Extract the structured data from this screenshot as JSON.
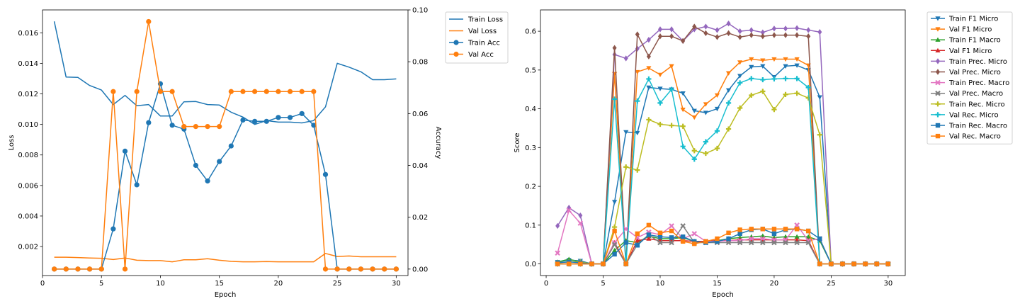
{
  "chart_data": [
    {
      "type": "line",
      "xlabel": "Epoch",
      "ylabel": "Loss",
      "y2label": "Accuracy",
      "xlim": [
        0,
        31
      ],
      "ylim": [
        0.0001,
        0.0175
      ],
      "y2lim": [
        -0.0025,
        0.1
      ],
      "xticks": [
        "0",
        "5",
        "10",
        "15",
        "20",
        "25",
        "30"
      ],
      "yticks": [
        "0.002",
        "0.004",
        "0.006",
        "0.008",
        "0.010",
        "0.012",
        "0.014",
        "0.016"
      ],
      "y2ticks": [
        "0.00",
        "0.02",
        "0.04",
        "0.06",
        "0.08",
        "0.10"
      ],
      "legend": "outside-right",
      "grid": false,
      "x": [
        1,
        2,
        3,
        4,
        5,
        6,
        7,
        8,
        9,
        10,
        11,
        12,
        13,
        14,
        15,
        16,
        17,
        18,
        19,
        20,
        21,
        22,
        23,
        24,
        25,
        26,
        27,
        28,
        29,
        30
      ],
      "series": [
        {
          "name": "Train Loss",
          "axis": "left",
          "color": "#1f77b4",
          "marker": "none",
          "values": [
            0.01675,
            0.0131,
            0.01308,
            0.01255,
            0.01225,
            0.0113,
            0.0119,
            0.01122,
            0.0113,
            0.01055,
            0.01055,
            0.01148,
            0.0115,
            0.0113,
            0.01127,
            0.0108,
            0.01048,
            0.01,
            0.01025,
            0.01015,
            0.01015,
            0.0101,
            0.01025,
            0.01115,
            0.014,
            0.01375,
            0.01345,
            0.01293,
            0.01293,
            0.01298
          ]
        },
        {
          "name": "Val Loss",
          "axis": "left",
          "color": "#ff7f0e",
          "marker": "none",
          "values": [
            0.0013,
            0.0013,
            0.00128,
            0.00125,
            0.00123,
            0.00115,
            0.00125,
            0.0011,
            0.00108,
            0.00108,
            0.001,
            0.00113,
            0.00113,
            0.0012,
            0.0011,
            0.00103,
            0.001,
            0.001,
            0.00102,
            0.001,
            0.001,
            0.001,
            0.001,
            0.00155,
            0.00135,
            0.00138,
            0.00133,
            0.00133,
            0.00133,
            0.00133
          ]
        },
        {
          "name": "Train Acc",
          "axis": "right",
          "color": "#1f77b4",
          "marker": "circle",
          "values": [
            0,
            0,
            0,
            0,
            0,
            0.0155,
            0.0455,
            0.0325,
            0.0565,
            0.0715,
            0.0555,
            0.054,
            0.04,
            0.034,
            0.0415,
            0.0475,
            0.0575,
            0.057,
            0.057,
            0.0585,
            0.0585,
            0.06,
            0.0555,
            0.0365,
            0,
            0,
            0,
            0,
            0,
            0
          ]
        },
        {
          "name": "Val Acc",
          "axis": "right",
          "color": "#ff7f0e",
          "marker": "circle",
          "values": [
            0,
            0,
            0,
            0,
            0,
            0.0685,
            0,
            0.0685,
            0.0955,
            0.0685,
            0.0685,
            0.055,
            0.055,
            0.055,
            0.055,
            0.0685,
            0.0685,
            0.0685,
            0.0685,
            0.0685,
            0.0685,
            0.0685,
            0.0685,
            0,
            0,
            0,
            0,
            0,
            0,
            0
          ]
        }
      ]
    },
    {
      "type": "line",
      "xlabel": "Epoch",
      "ylabel": "Score",
      "xlim": [
        -0.5,
        31.5
      ],
      "ylim": [
        -0.03,
        0.655
      ],
      "xticks": [
        "0",
        "5",
        "10",
        "15",
        "20",
        "25",
        "30"
      ],
      "yticks": [
        "0.0",
        "0.1",
        "0.2",
        "0.3",
        "0.4",
        "0.5",
        "0.6"
      ],
      "legend": "outside-right",
      "grid": false,
      "x": [
        1,
        2,
        3,
        4,
        5,
        6,
        7,
        8,
        9,
        10,
        11,
        12,
        13,
        14,
        15,
        16,
        17,
        18,
        19,
        20,
        21,
        22,
        23,
        24,
        25,
        26,
        27,
        28,
        29,
        30
      ],
      "series": [
        {
          "name": "Train F1 Micro",
          "color": "#1f77b4",
          "marker": "tri-down",
          "values": [
            0.005,
            0.01,
            0.008,
            0,
            0,
            0.16,
            0.34,
            0.338,
            0.455,
            0.452,
            0.45,
            0.44,
            0.395,
            0.39,
            0.4,
            0.448,
            0.485,
            0.508,
            0.51,
            0.482,
            0.51,
            0.512,
            0.5,
            0.43,
            0,
            0,
            0,
            0,
            0,
            0
          ]
        },
        {
          "name": "Val F1 Micro",
          "color": "#ff7f0e",
          "marker": "tri-down",
          "values": [
            0,
            0,
            0,
            0,
            0,
            0.49,
            0,
            0.495,
            0.505,
            0.488,
            0.51,
            0.398,
            0.378,
            0.412,
            0.435,
            0.492,
            0.52,
            0.528,
            0.525,
            0.528,
            0.528,
            0.528,
            0.512,
            0,
            0,
            0,
            0,
            0,
            0,
            0
          ]
        },
        {
          "name": "Train F1 Macro",
          "color": "#2ca02c",
          "marker": "tri-up",
          "values": [
            0.005,
            0.012,
            0.005,
            0,
            0,
            0.035,
            0.06,
            0.055,
            0.072,
            0.065,
            0.065,
            0.068,
            0.058,
            0.058,
            0.06,
            0.065,
            0.068,
            0.07,
            0.072,
            0.068,
            0.07,
            0.07,
            0.07,
            0.06,
            0,
            0,
            0,
            0,
            0,
            0
          ]
        },
        {
          "name": "Val F1 Micro",
          "color": "#d62728",
          "marker": "tri-up",
          "values": [
            0,
            0,
            0,
            0,
            0,
            0.055,
            0,
            0.06,
            0.065,
            0.06,
            0.06,
            0.06,
            0.058,
            0.058,
            0.06,
            0.06,
            0.062,
            0.062,
            0.062,
            0.062,
            0.062,
            0.062,
            0.06,
            0,
            0,
            0,
            0,
            0,
            0,
            0
          ]
        },
        {
          "name": "Train Prec. Micro",
          "color": "#9467bd",
          "marker": "diamond",
          "values": [
            0.098,
            0.145,
            0.125,
            0,
            0,
            0.54,
            0.53,
            0.555,
            0.578,
            0.605,
            0.605,
            0.575,
            0.605,
            0.612,
            0.603,
            0.62,
            0.6,
            0.603,
            0.597,
            0.607,
            0.607,
            0.608,
            0.603,
            0.598,
            0,
            0,
            0,
            0,
            0,
            0
          ]
        },
        {
          "name": "Val Prec. Micro",
          "color": "#8c564b",
          "marker": "diamond",
          "values": [
            0,
            0,
            0,
            0,
            0,
            0.557,
            0,
            0.592,
            0.535,
            0.587,
            0.587,
            0.575,
            0.612,
            0.595,
            0.585,
            0.595,
            0.585,
            0.59,
            0.587,
            0.59,
            0.59,
            0.59,
            0.587,
            0,
            0,
            0,
            0,
            0,
            0,
            0
          ]
        },
        {
          "name": "Train Prec. Macro",
          "color": "#e377c2",
          "marker": "x",
          "values": [
            0.028,
            0.138,
            0.105,
            0,
            0,
            0.055,
            0.09,
            0.068,
            0.082,
            0.075,
            0.098,
            0.065,
            0.078,
            0.058,
            0.058,
            0.06,
            0.06,
            0.065,
            0.065,
            0.062,
            0.062,
            0.1,
            0.06,
            0.065,
            0,
            0,
            0,
            0,
            0,
            0
          ]
        },
        {
          "name": "Val Prec. Macro",
          "color": "#7f7f7f",
          "marker": "x",
          "values": [
            0,
            0,
            0,
            0,
            0,
            0.05,
            0,
            0.05,
            0.075,
            0.055,
            0.055,
            0.098,
            0.055,
            0.055,
            0.055,
            0.055,
            0.055,
            0.055,
            0.055,
            0.055,
            0.055,
            0.055,
            0.055,
            0,
            0,
            0,
            0,
            0,
            0,
            0
          ]
        },
        {
          "name": "Train Rec. Micro",
          "color": "#bcbd22",
          "marker": "plus",
          "values": [
            0.003,
            0.005,
            0.005,
            0,
            0,
            0.095,
            0.25,
            0.242,
            0.372,
            0.36,
            0.357,
            0.355,
            0.292,
            0.285,
            0.298,
            0.348,
            0.402,
            0.435,
            0.445,
            0.398,
            0.437,
            0.44,
            0.428,
            0.333,
            0,
            0,
            0,
            0,
            0,
            0
          ]
        },
        {
          "name": "Val Rec. Micro",
          "color": "#17becf",
          "marker": "plus",
          "values": [
            0,
            0,
            0,
            0,
            0,
            0.425,
            0,
            0.42,
            0.477,
            0.415,
            0.45,
            0.303,
            0.27,
            0.315,
            0.343,
            0.415,
            0.467,
            0.478,
            0.475,
            0.477,
            0.478,
            0.478,
            0.455,
            0,
            0,
            0,
            0,
            0,
            0,
            0
          ]
        },
        {
          "name": "Train Rec. Macro",
          "color": "#1f77b4",
          "marker": "square",
          "values": [
            0.003,
            0.005,
            0.003,
            0,
            0,
            0.025,
            0.055,
            0.048,
            0.075,
            0.07,
            0.068,
            0.07,
            0.058,
            0.055,
            0.058,
            0.065,
            0.078,
            0.088,
            0.09,
            0.078,
            0.088,
            0.09,
            0.085,
            0.065,
            0,
            0,
            0,
            0,
            0,
            0
          ]
        },
        {
          "name": "Val Rec. Macro",
          "color": "#ff7f0e",
          "marker": "square",
          "values": [
            0,
            0,
            0,
            0,
            0,
            0.085,
            0,
            0.078,
            0.1,
            0.08,
            0.085,
            0.058,
            0.052,
            0.058,
            0.065,
            0.08,
            0.088,
            0.09,
            0.09,
            0.09,
            0.09,
            0.09,
            0.085,
            0,
            0,
            0,
            0,
            0,
            0,
            0
          ]
        }
      ]
    }
  ]
}
